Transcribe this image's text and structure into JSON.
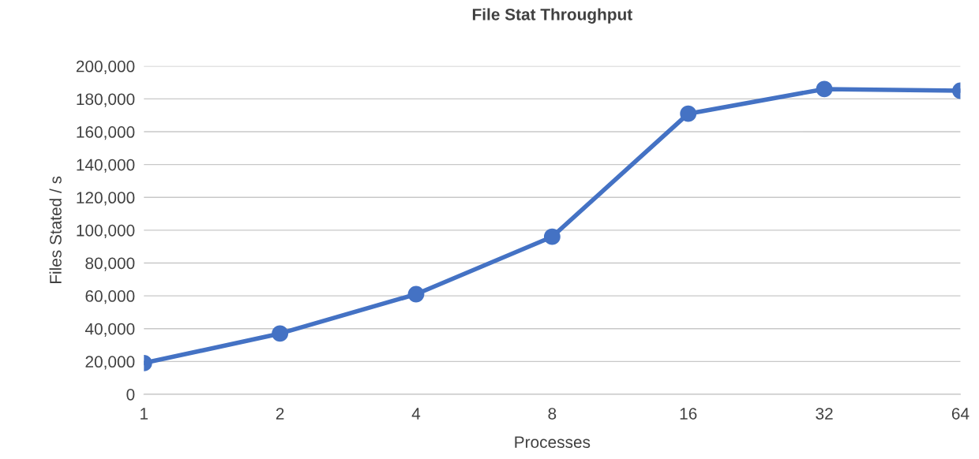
{
  "chart_data": {
    "type": "line",
    "title": "File Stat Throughput",
    "xlabel": "Processes",
    "ylabel": "Files Stated / s",
    "categories": [
      "1",
      "2",
      "4",
      "8",
      "16",
      "32",
      "64"
    ],
    "series": [
      {
        "color": "#4472c4",
        "values": [
          19000,
          37000,
          61000,
          96000,
          171000,
          186000,
          185000
        ]
      }
    ],
    "ylim": [
      0,
      200000
    ],
    "yticks": [
      0,
      {
        "value": 20000,
        "label": "20,000"
      },
      {
        "value": 40000,
        "label": "40,000"
      },
      {
        "value": 60000,
        "label": "60,000"
      },
      {
        "value": 80000,
        "label": "80,000"
      },
      {
        "value": 100000,
        "label": "100,000"
      },
      {
        "value": 120000,
        "label": "120,000"
      },
      {
        "value": 140000,
        "label": "140,000"
      },
      {
        "value": 160000,
        "label": "160,000"
      },
      {
        "value": 180000,
        "label": "180,000"
      },
      {
        "value": 200000,
        "label": "200,000"
      }
    ],
    "grid": "y",
    "marker": "circle",
    "line_style": "solid",
    "legend": false
  }
}
